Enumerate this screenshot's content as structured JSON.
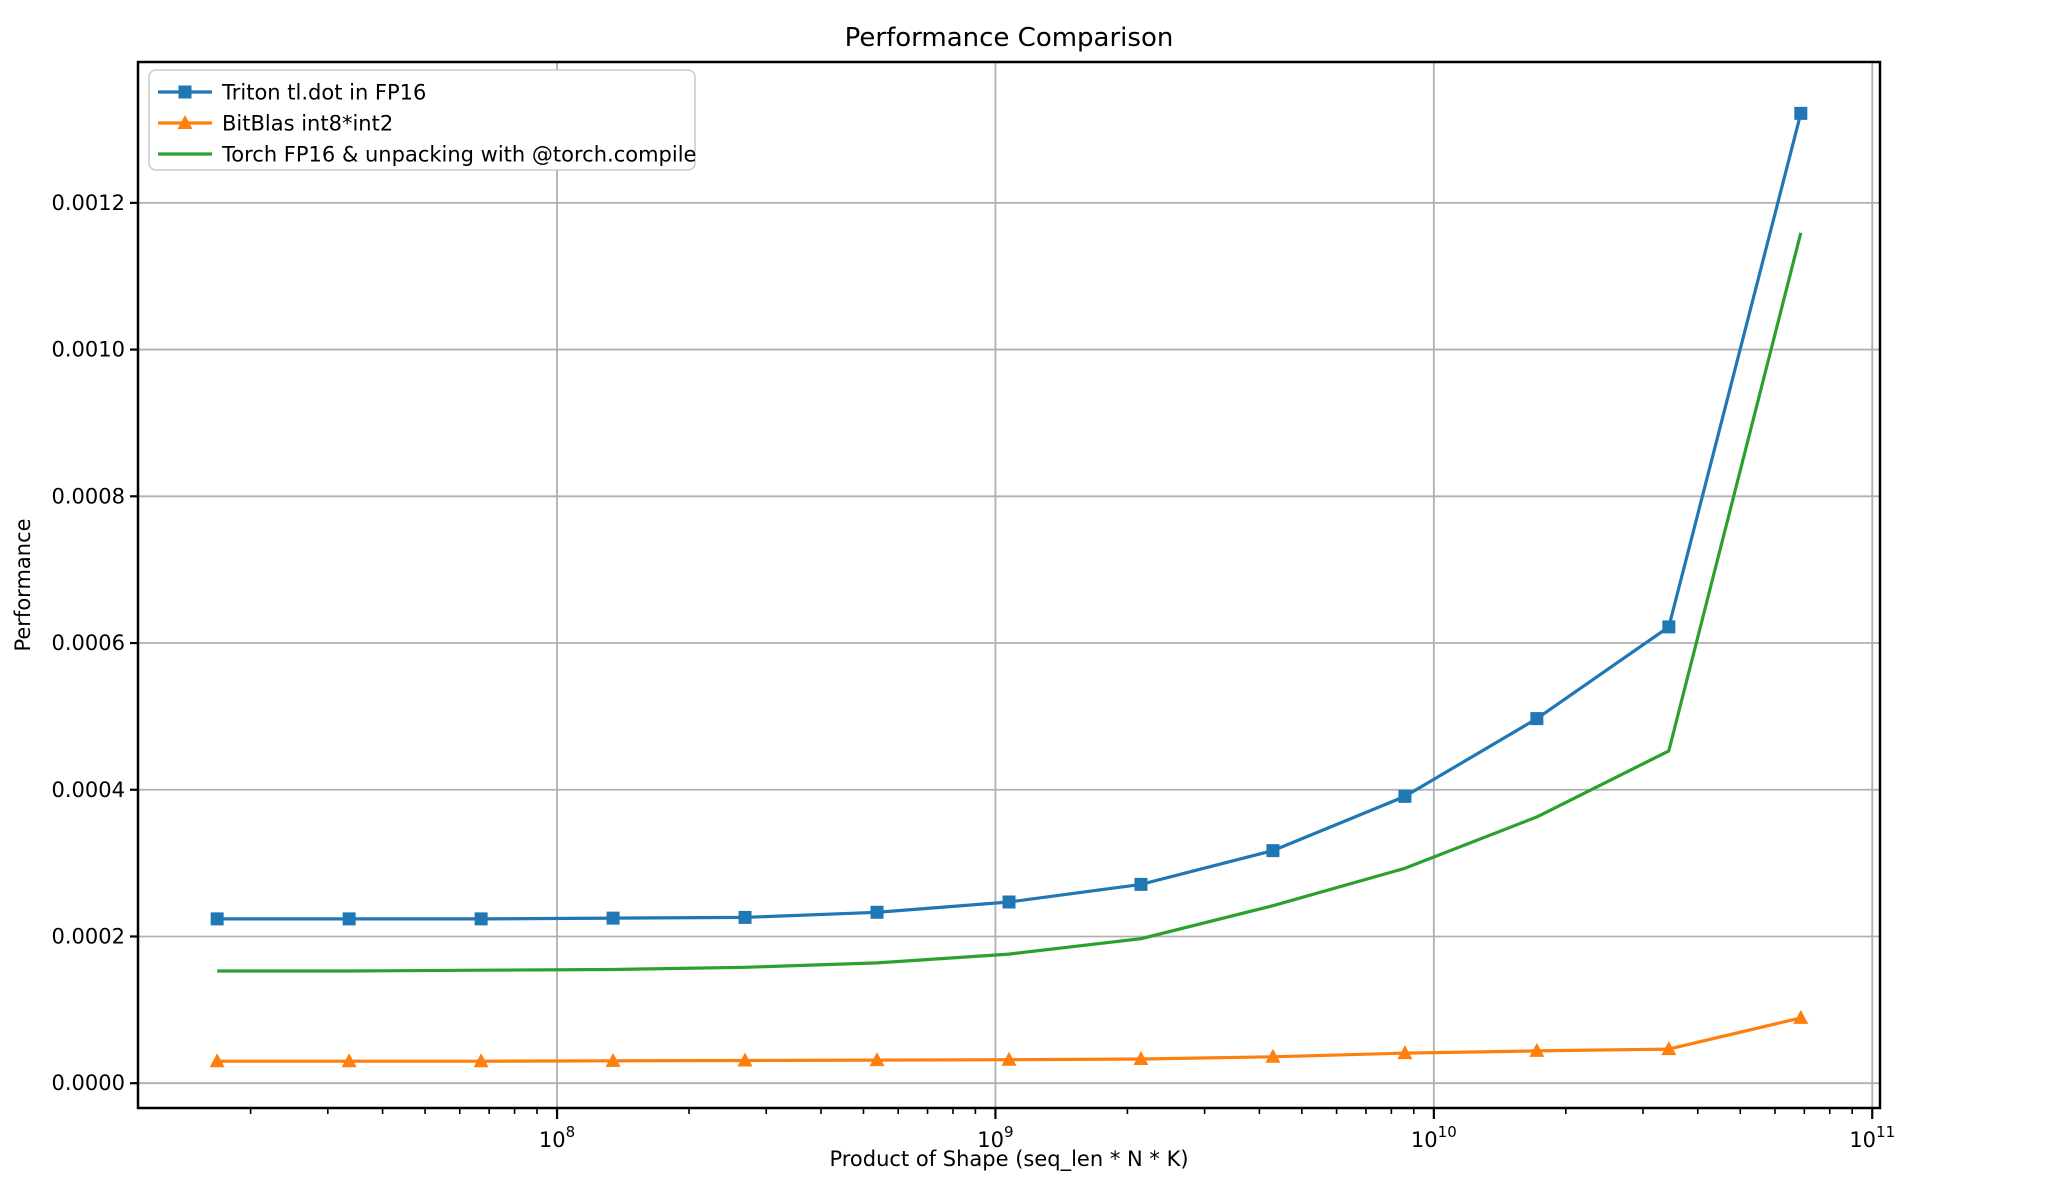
{
  "figure": {
    "background_color": "#ffffff"
  },
  "chart_data": {
    "type": "line",
    "title": "Performance Comparison",
    "xlabel": "Product of Shape (seq_len * N * K)",
    "ylabel": "Performance",
    "x_scale": "log",
    "grid": true,
    "legend_position": "upper left",
    "xlim": [
      11070000,
      104160000000
    ],
    "ylim": [
      -3.38e-05,
      0.001392
    ],
    "x": [
      16777216,
      33554432,
      67108864,
      134217728,
      268435456,
      536870912,
      1073741824,
      2147483648,
      4294967296,
      8589934592,
      17179869184,
      34359738368,
      68719476736
    ],
    "series": [
      {
        "name": "Triton tl.dot in FP16",
        "color": "#1f77b4",
        "marker": "square",
        "values": [
          0.000224,
          0.000224,
          0.000224,
          0.000225,
          0.000226,
          0.000233,
          0.000247,
          0.000271,
          0.000317,
          0.000391,
          0.000497,
          0.000622,
          0.001322
        ]
      },
      {
        "name": "BitBlas int8*int2",
        "color": "#ff7f0e",
        "marker": "triangle-up",
        "values": [
          3e-05,
          3e-05,
          3e-05,
          3.05e-05,
          3.1e-05,
          3.15e-05,
          3.2e-05,
          3.3e-05,
          3.6e-05,
          4.1e-05,
          4.4e-05,
          4.65e-05,
          8.9e-05
        ]
      },
      {
        "name": "Torch FP16 & unpacking with @torch.compile",
        "color": "#2ca02c",
        "marker": "none",
        "values": [
          0.000153,
          0.000153,
          0.000154,
          0.000155,
          0.000158,
          0.000164,
          0.000176,
          0.000197,
          0.000242,
          0.000293,
          0.000363,
          0.000453,
          0.001159
        ]
      }
    ],
    "x_major_ticks": [
      {
        "value": 100000000,
        "base": "10",
        "exponent": "8"
      },
      {
        "value": 1000000000,
        "base": "10",
        "exponent": "9"
      },
      {
        "value": 10000000000,
        "base": "10",
        "exponent": "10"
      },
      {
        "value": 100000000000,
        "base": "10",
        "exponent": "11"
      }
    ],
    "y_ticks": [
      {
        "value": 0.0,
        "label": "0.0000"
      },
      {
        "value": 0.0002,
        "label": "0.0002"
      },
      {
        "value": 0.0004,
        "label": "0.0004"
      },
      {
        "value": 0.0006,
        "label": "0.0006"
      },
      {
        "value": 0.0008,
        "label": "0.0008"
      },
      {
        "value": 0.001,
        "label": "0.0010"
      },
      {
        "value": 0.0012,
        "label": "0.0012"
      }
    ]
  },
  "colors": {
    "grid": "#b0b0b0",
    "spine": "#000000",
    "text": "#000000",
    "legend_border": "#cccccc",
    "background": "#ffffff"
  }
}
